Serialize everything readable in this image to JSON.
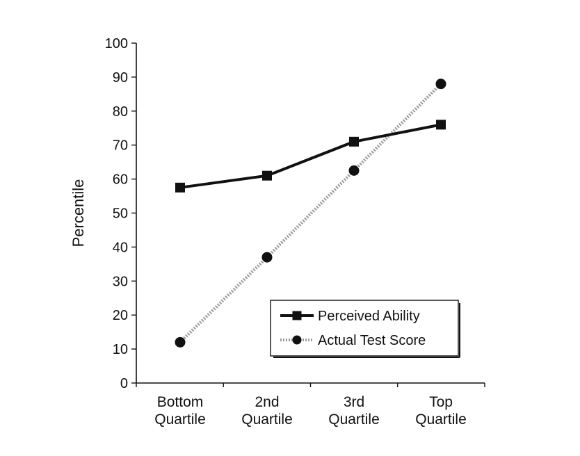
{
  "chart_data": {
    "type": "line",
    "title": "",
    "xlabel": "",
    "ylabel": "Percentile",
    "ylim": [
      0,
      100
    ],
    "yticks": [
      "0",
      "10",
      "20",
      "30",
      "40",
      "50",
      "60",
      "70",
      "80",
      "90",
      "100"
    ],
    "categories": [
      [
        "Bottom",
        "Quartile"
      ],
      [
        "2nd",
        "Quartile"
      ],
      [
        "3rd",
        "Quartile"
      ],
      [
        "Top",
        "Quartile"
      ]
    ],
    "series": [
      {
        "name": "Perceived Ability",
        "values": [
          57.5,
          61,
          71,
          76
        ],
        "marker": "square",
        "style": "solid",
        "color": "#111111"
      },
      {
        "name": "Actual Test Score",
        "values": [
          12,
          37,
          62.5,
          88
        ],
        "marker": "circle",
        "style": "dotted",
        "color": "#111111"
      }
    ],
    "legend": {
      "placement": "bottom-right",
      "boxed": true
    },
    "grid": false
  }
}
